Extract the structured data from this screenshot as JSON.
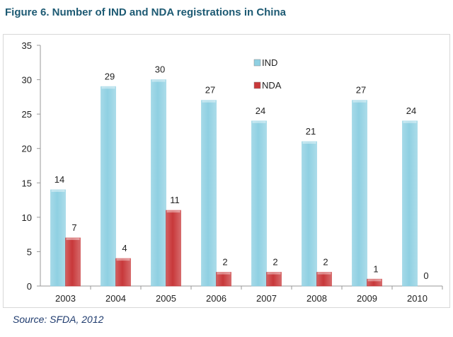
{
  "title": "Figure 6. Number of IND and NDA registrations in China",
  "source": "Source: SFDA, 2012",
  "chart_data": {
    "type": "bar",
    "categories": [
      "2003",
      "2004",
      "2005",
      "2006",
      "2007",
      "2008",
      "2009",
      "2010"
    ],
    "series": [
      {
        "name": "IND",
        "values": [
          14,
          29,
          30,
          27,
          24,
          21,
          27,
          24
        ],
        "color": "#8fd0e2"
      },
      {
        "name": "NDA",
        "values": [
          7,
          4,
          11,
          2,
          2,
          2,
          1,
          0
        ],
        "color": "#c8383a"
      }
    ],
    "ylim": [
      0,
      35
    ],
    "yticks": [
      0,
      5,
      10,
      15,
      20,
      25,
      30,
      35
    ],
    "grid": false,
    "legend": "top-right",
    "data_labels": true
  }
}
